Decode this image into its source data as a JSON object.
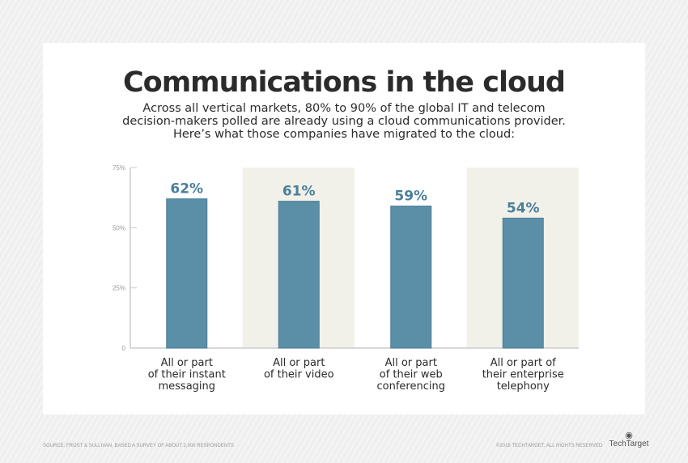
{
  "title": "Communications in the cloud",
  "subtitle_lines": [
    "Across all vertical markets, 80% to 90% of the global IT and telecom",
    "decision-makers polled are already using a cloud communications provider.",
    "Here’s what those companies have migrated to the cloud:"
  ],
  "chart_data": {
    "type": "bar",
    "categories": [
      [
        "All or part",
        "of their instant",
        "messaging"
      ],
      [
        "All or part",
        "of their video"
      ],
      [
        "All or part",
        "of their web",
        "conferencing"
      ],
      [
        "All or part of",
        "their enterprise",
        "telephony"
      ]
    ],
    "values": [
      62,
      61,
      59,
      54
    ],
    "data_labels": [
      "62%",
      "61%",
      "59%",
      "54%"
    ],
    "ylim": [
      0,
      75
    ],
    "yticks": [
      0,
      25,
      50,
      75
    ],
    "ytick_labels": [
      "0",
      "25%",
      "50%",
      "75%"
    ],
    "bar_color": "#5b8fa8",
    "label_color": "#4a7f9b",
    "band_color": "#f2f1e9",
    "grid": false
  },
  "footer": {
    "source": "SOURCE: FROST & SULLIVAN, BASED A SURVEY OF ABOUT 2,000 RESPONDENTS",
    "copyright": "©2018 TECHTARGET. ALL RIGHTS RESERVED",
    "logo": "TechTarget"
  }
}
